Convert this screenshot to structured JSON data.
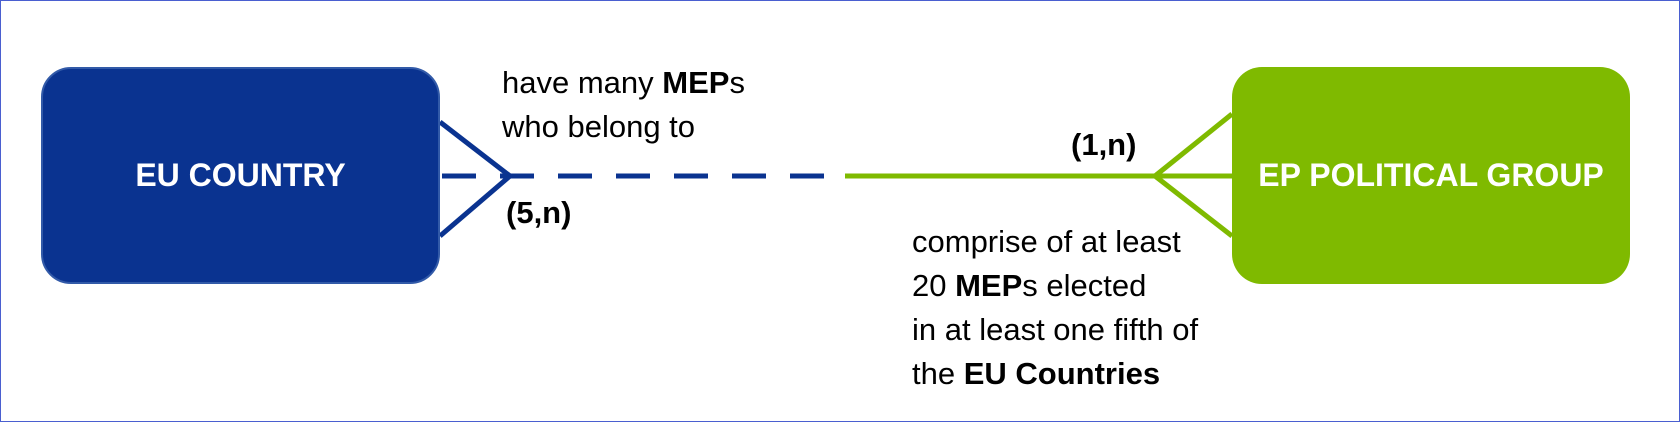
{
  "diagram": {
    "left_entity": {
      "label": "EU COUNTRY",
      "color": "#0a3390"
    },
    "right_entity": {
      "label": "EP POLITICAL GROUP",
      "color": "#7fba00"
    },
    "relationship": {
      "left_to_right": {
        "line1_prefix": "have many ",
        "line1_bold": "MEP",
        "line1_suffix": "s",
        "line2": "who belong to"
      },
      "right_to_left": {
        "line1": "comprise of at least",
        "line2_prefix": "20 ",
        "line2_bold": "MEP",
        "line2_suffix": "s elected",
        "line3": "in at least one fifth of",
        "line4_prefix": "the ",
        "line4_bold": "EU Countries"
      },
      "left_cardinality": "(5,n)",
      "right_cardinality": "(1,n)",
      "left_line_color": "#0a3390",
      "right_line_color": "#7fba00"
    }
  }
}
